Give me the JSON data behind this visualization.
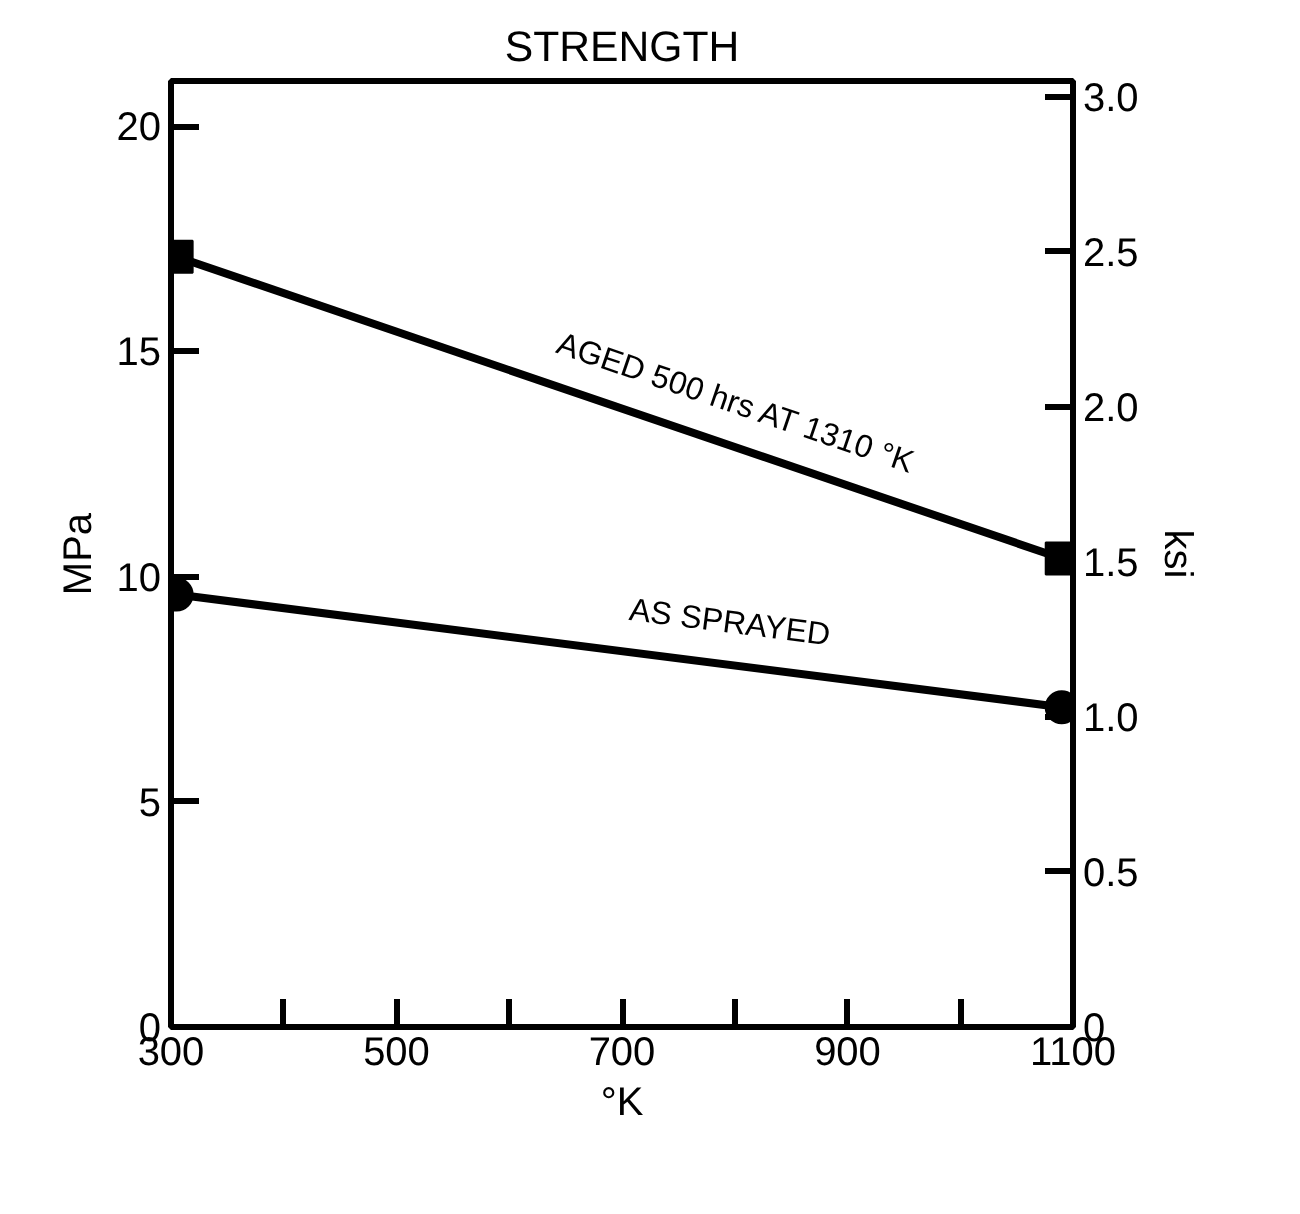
{
  "chart_data": {
    "type": "line",
    "title": "STRENGTH",
    "xlabel": "°K",
    "ylabel": "MPa",
    "y2label": "ksi",
    "xlim": [
      300,
      1100
    ],
    "xticks": [
      300,
      {
        "value": 400,
        "label": null
      },
      500,
      {
        "value": 600,
        "label": null
      },
      700,
      {
        "value": 800,
        "label": null
      },
      900,
      {
        "value": 1000,
        "label": null
      },
      1100
    ],
    "ylim": [
      0,
      21
    ],
    "yticks": [
      0,
      5,
      10,
      15,
      20
    ],
    "y2lim": [
      0,
      3.05
    ],
    "y2ticks": [
      0,
      0.5,
      {
        "value": 1,
        "label": "1.0"
      },
      1.5,
      {
        "value": 2,
        "label": "2.0"
      },
      2.5,
      {
        "value": 3,
        "label": "3.0"
      }
    ],
    "grid": false,
    "line_style": "solid",
    "x": [
      305,
      1090
    ],
    "series": [
      {
        "name": "AGED 500 hrs AT 1310 °K",
        "color": "#000000",
        "marker": "square",
        "values": [
          17.1,
          10.4
        ]
      },
      {
        "name": "AS SPRAYED",
        "color": "#000000",
        "marker": "circle",
        "values": [
          9.6,
          7.1
        ]
      }
    ]
  }
}
